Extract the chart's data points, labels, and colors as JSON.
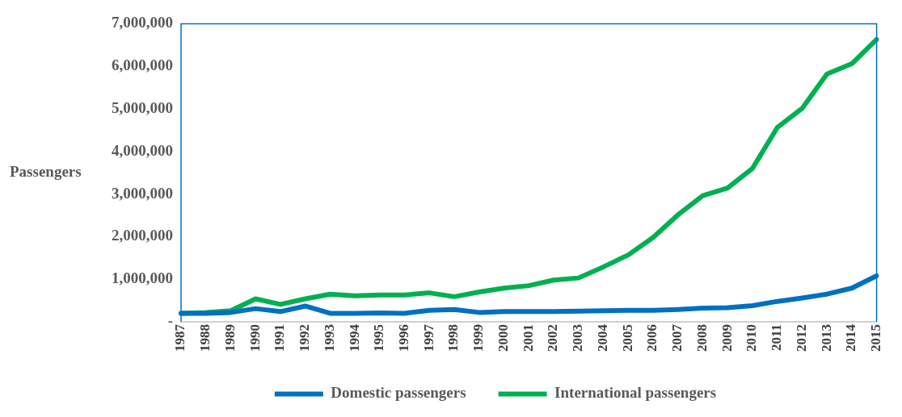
{
  "chart_data": {
    "type": "line",
    "ylabel": "Passengers",
    "categories": [
      "1987",
      "1988",
      "1989",
      "1990",
      "1991",
      "1992",
      "1993",
      "1994",
      "1995",
      "1996",
      "1997",
      "1998",
      "1999",
      "2000",
      "2001",
      "2002",
      "2003",
      "2004",
      "2005",
      "2006",
      "2007",
      "2008",
      "2009",
      "2010",
      "2011",
      "2012",
      "2013",
      "2014",
      "2015"
    ],
    "series": [
      {
        "name": "Domestic passengers",
        "color": "#0070c0",
        "values": [
          200000,
          200000,
          220000,
          310000,
          240000,
          370000,
          200000,
          200000,
          210000,
          200000,
          270000,
          290000,
          220000,
          240000,
          240000,
          240000,
          250000,
          260000,
          270000,
          270000,
          290000,
          320000,
          330000,
          380000,
          480000,
          560000,
          650000,
          790000,
          1080000
        ]
      },
      {
        "name": "International passengers",
        "color": "#00b050",
        "values": [
          200000,
          220000,
          260000,
          540000,
          410000,
          540000,
          650000,
          610000,
          630000,
          630000,
          680000,
          590000,
          700000,
          790000,
          850000,
          980000,
          1030000,
          1290000,
          1570000,
          1980000,
          2510000,
          2960000,
          3140000,
          3600000,
          4560000,
          5010000,
          5820000,
          6060000,
          6630000
        ]
      }
    ],
    "ylim": [
      0,
      7000000
    ],
    "yticks": [
      {
        "value": 0,
        "label": "-"
      },
      {
        "value": 1000000,
        "label": "1,000,000"
      },
      {
        "value": 2000000,
        "label": "2,000,000"
      },
      {
        "value": 3000000,
        "label": "3,000,000"
      },
      {
        "value": 4000000,
        "label": "4,000,000"
      },
      {
        "value": 5000000,
        "label": "5,000,000"
      },
      {
        "value": 6000000,
        "label": "6,000,000"
      },
      {
        "value": 7000000,
        "label": "7,000,000"
      }
    ],
    "grid": false,
    "legend": "bottom",
    "marker": "none",
    "line_style": "solid"
  }
}
